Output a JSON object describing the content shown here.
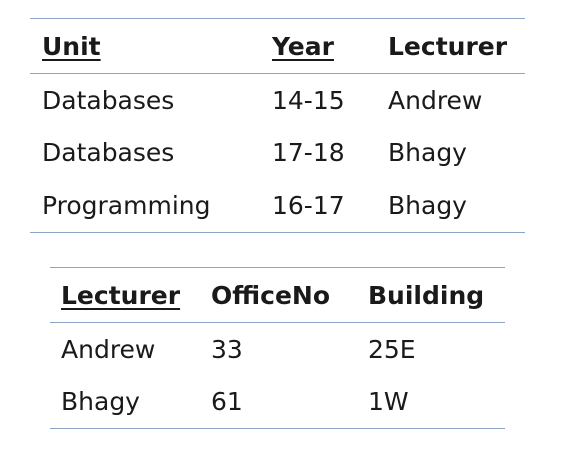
{
  "units_table": {
    "headers": [
      "Unit",
      "Year",
      "Lecturer"
    ],
    "rows": [
      [
        "Databases",
        "14-15",
        "Andrew"
      ],
      [
        "Databases",
        "17-18",
        "Bhagy"
      ],
      [
        "Programming",
        "16-17",
        "Bhagy"
      ]
    ]
  },
  "lecturers_table": {
    "headers": [
      "Lecturer",
      "OfficeNo",
      "Building"
    ],
    "rows": [
      [
        "Andrew",
        "33",
        "25E"
      ],
      [
        "Bhagy",
        "61",
        "1W"
      ]
    ]
  }
}
